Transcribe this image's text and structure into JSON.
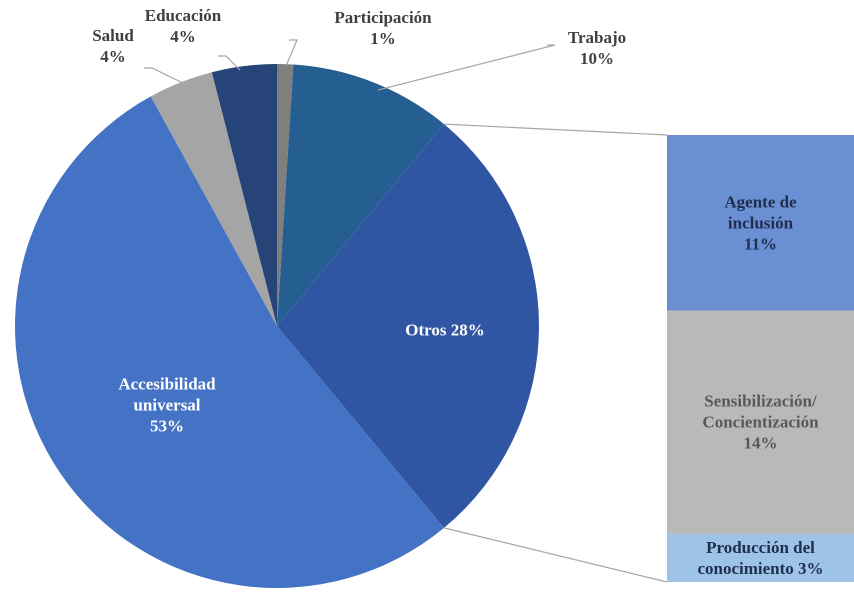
{
  "chart_data": {
    "type": "pie",
    "categories": [
      "Participación",
      "Trabajo",
      "Otros",
      "Accesibilidad universal",
      "Salud",
      "Educación"
    ],
    "values": [
      1,
      10,
      28,
      53,
      4,
      4
    ],
    "value_labels": [
      "1%",
      "10%",
      "28%",
      "53%",
      "4%",
      "4%"
    ],
    "colors": [
      "#7f7f7f",
      "#255e91",
      "#2f55a3",
      "#4472c4",
      "#a5a5a5",
      "#264478"
    ],
    "breakdown": {
      "categories": [
        "Agente de inclusión",
        "Sensibilización/ Concientización",
        "Producción del conocimiento"
      ],
      "values": [
        11,
        14,
        3
      ],
      "value_labels": [
        "11%",
        "14%",
        "3%"
      ],
      "colors": [
        "#6a8fd3",
        "#b9b9b9",
        "#9dc3e6"
      ]
    }
  }
}
